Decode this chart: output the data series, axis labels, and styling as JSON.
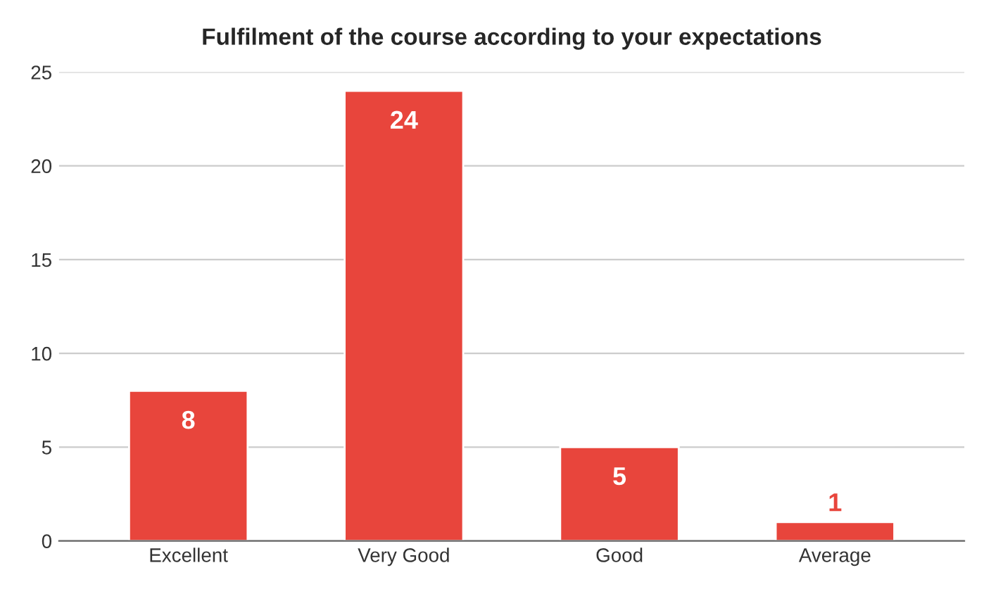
{
  "chart_data": {
    "type": "bar",
    "title": "Fulfilment of the course according to your expectations",
    "categories": [
      "Excellent",
      "Very Good",
      "Good",
      "Average"
    ],
    "values": [
      8,
      24,
      5,
      1
    ],
    "color": "#e8453c",
    "ylim": [
      0,
      25
    ],
    "yticks": [
      0,
      5,
      10,
      15,
      20,
      25
    ],
    "grid": "y",
    "data_labels": true
  }
}
